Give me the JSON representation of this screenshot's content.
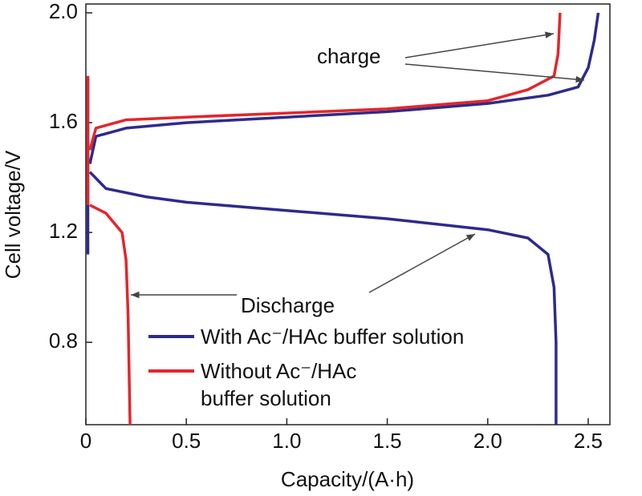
{
  "chart_data": {
    "type": "line",
    "x_label": "Capacity/(A·h)",
    "y_label": "Cell voltage/V",
    "xlim": [
      0,
      2.6
    ],
    "ylim": [
      0.5,
      2.0
    ],
    "xticks": [
      0,
      0.5,
      {
        "value": 1.0,
        "label": "1.0"
      },
      1.5,
      {
        "value": 2.0,
        "label": "2.0"
      },
      2.5
    ],
    "yticks": [
      0.8,
      1.2,
      1.6,
      {
        "value": 2.0,
        "label": "2.0"
      }
    ],
    "grid": false,
    "annotations": [
      "charge",
      "Discharge"
    ],
    "series": [
      {
        "name": "With Ac⁻/HAc buffer solution",
        "color": "#2e2a8c",
        "x": [
          2.34,
          2.34,
          2.33,
          2.3,
          2.2,
          2.0,
          1.5,
          1.0,
          0.5,
          0.3,
          0.1,
          0.02,
          null,
          0.01,
          0.01,
          null,
          0.02,
          0.05,
          0.2,
          0.5,
          1.0,
          1.5,
          2.0,
          2.3,
          2.45,
          2.5,
          2.53,
          2.55
        ],
        "values": [
          0.5,
          0.8,
          1.0,
          1.12,
          1.18,
          1.21,
          1.25,
          1.28,
          1.31,
          1.33,
          1.36,
          1.42,
          null,
          1.12,
          1.76,
          null,
          1.45,
          1.55,
          1.58,
          1.6,
          1.62,
          1.64,
          1.67,
          1.7,
          1.73,
          1.8,
          1.9,
          2.0
        ]
      },
      {
        "name": "Without Ac⁻/HAc buffer solution",
        "color": "#e3262b",
        "x": [
          0.22,
          0.21,
          0.2,
          0.18,
          0.1,
          0.02,
          null,
          0.01,
          0.01,
          null,
          0.02,
          0.05,
          0.2,
          0.5,
          1.0,
          1.5,
          2.0,
          2.2,
          2.33,
          2.35,
          2.36
        ],
        "values": [
          0.5,
          0.9,
          1.1,
          1.2,
          1.27,
          1.3,
          null,
          1.3,
          1.77,
          null,
          1.5,
          1.58,
          1.61,
          1.62,
          1.635,
          1.65,
          1.68,
          1.72,
          1.77,
          1.85,
          2.0
        ]
      }
    ]
  }
}
